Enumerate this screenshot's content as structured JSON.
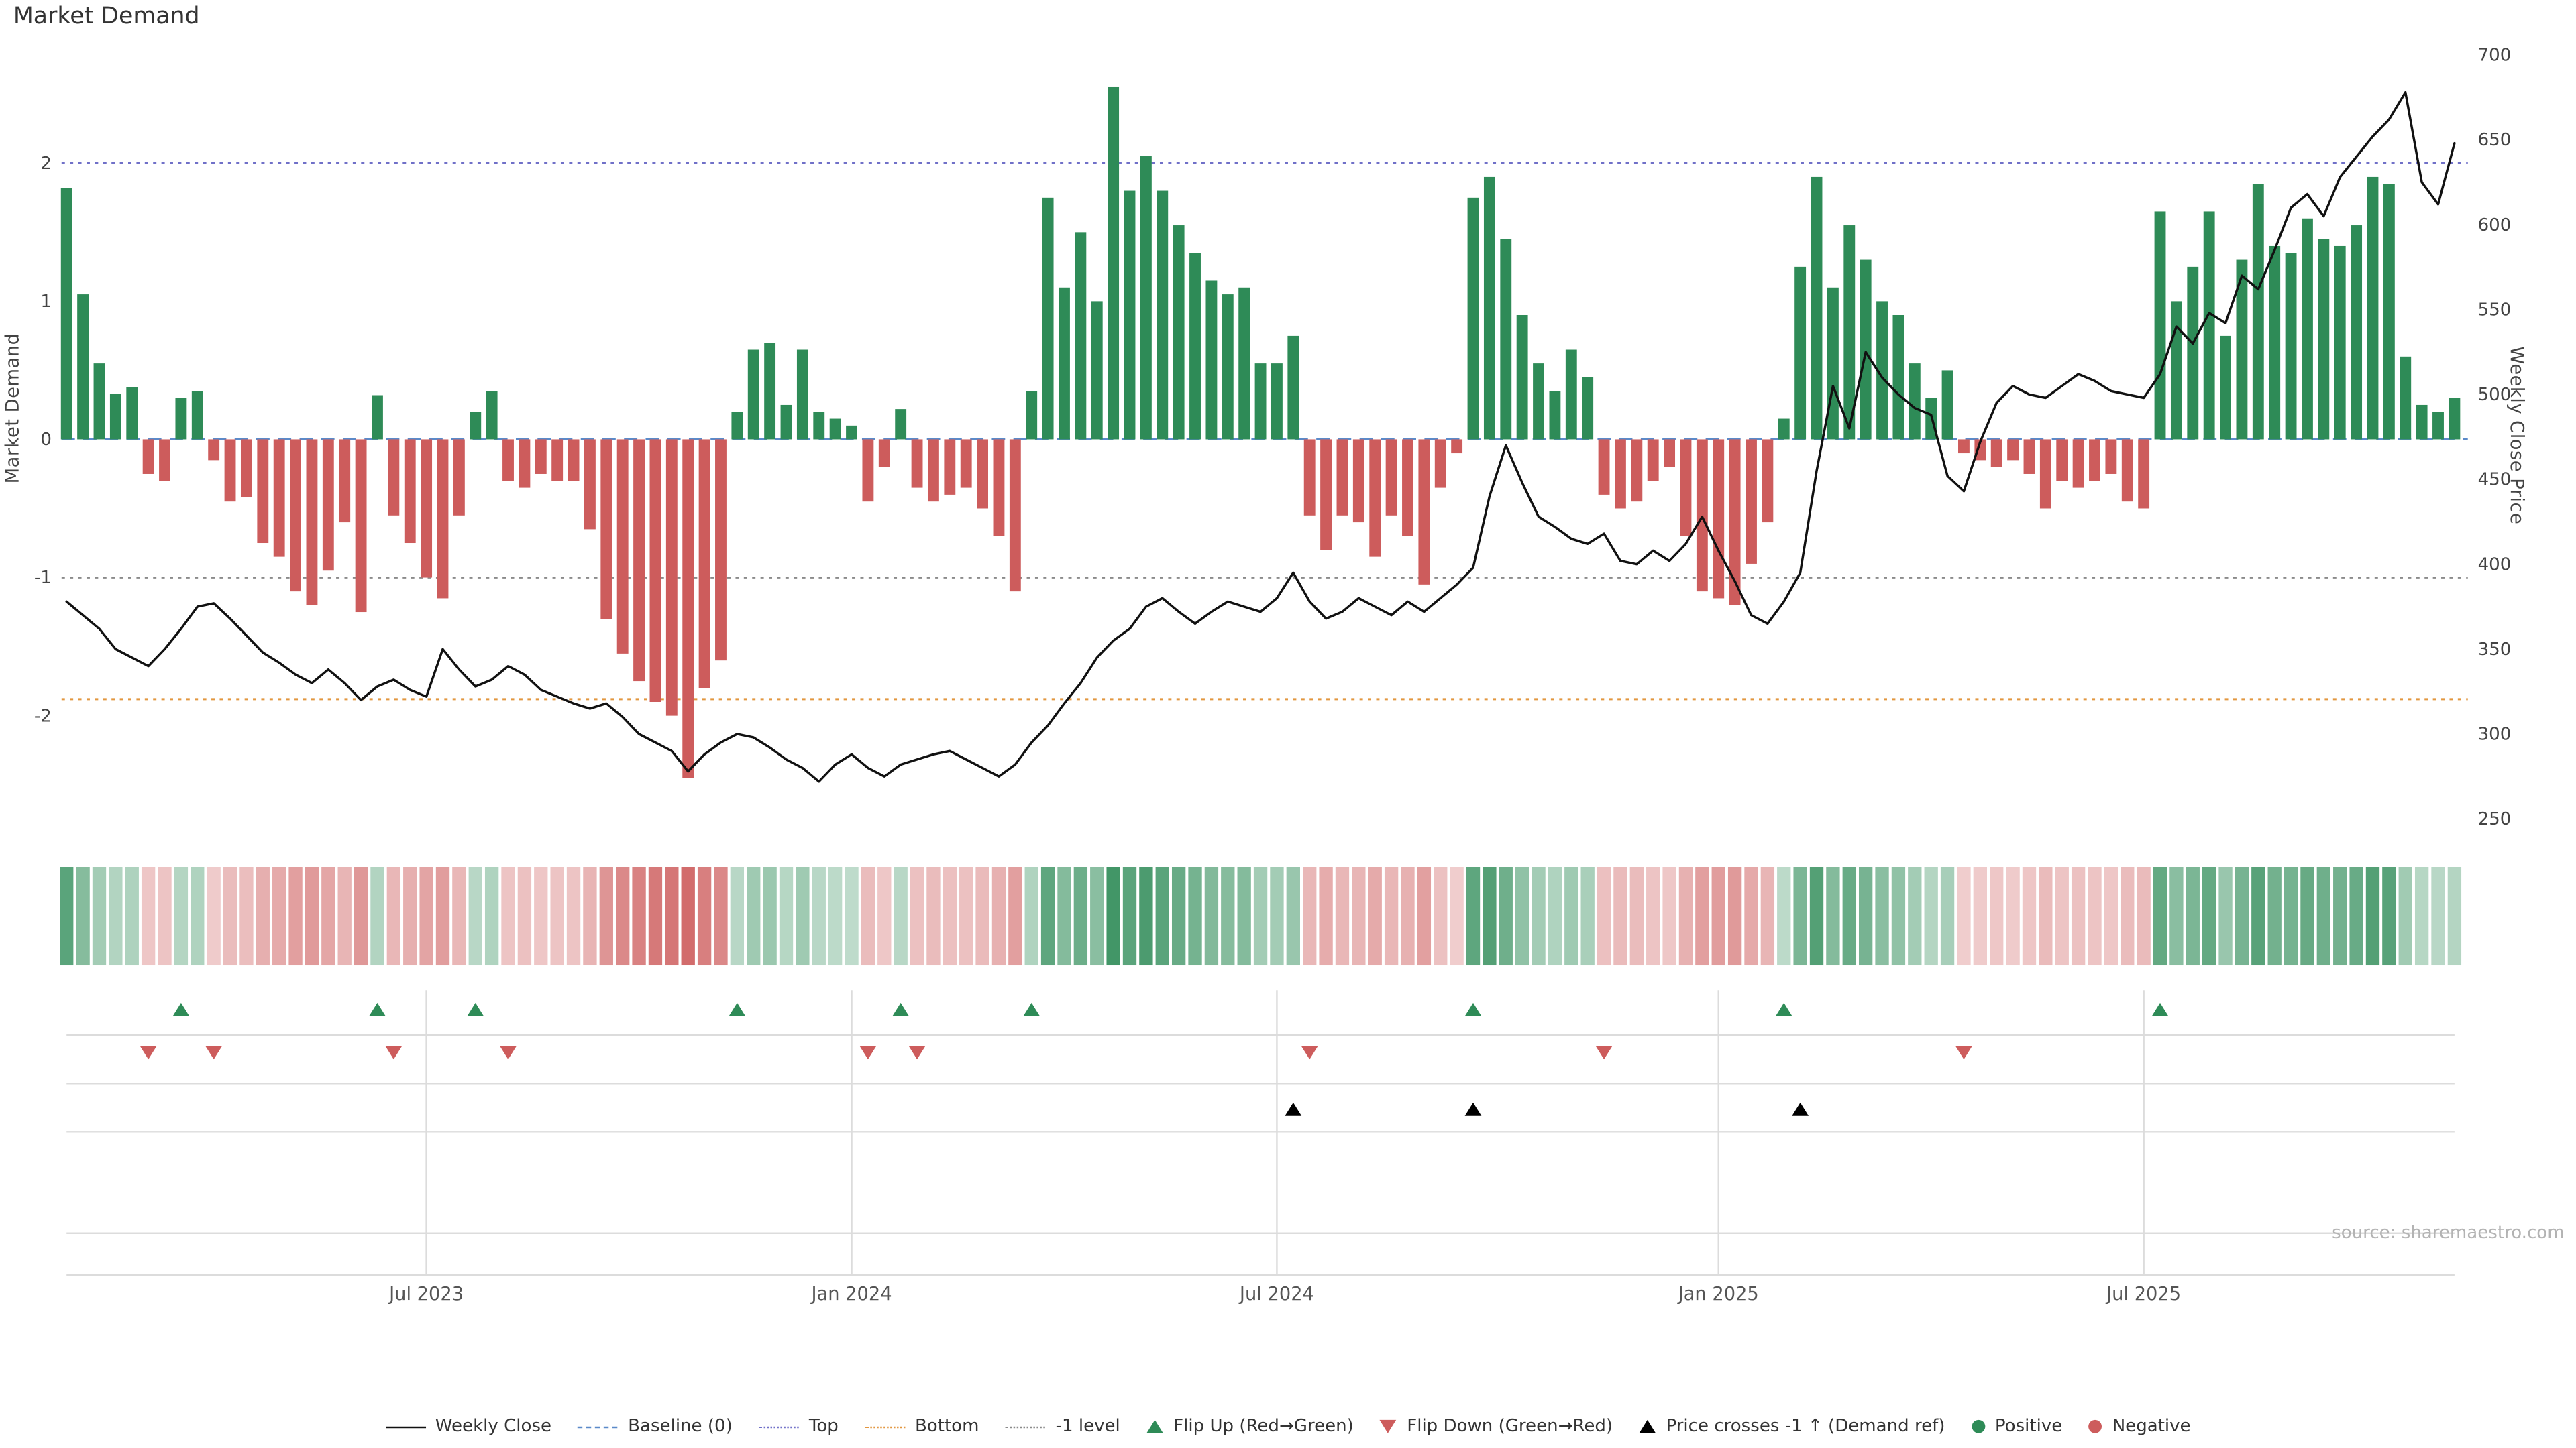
{
  "title": "Market Demand",
  "source": "source: sharemaestro.com",
  "colors": {
    "positive": "#2e8b57",
    "negative": "#cd5c5c",
    "price_line": "#111111",
    "baseline": "#5b8ac9",
    "top": "#7070c8",
    "bottom": "#e2963f",
    "minus_one": "#8a8a8a",
    "grid": "#dcdcdc",
    "tick_text": "#555555",
    "source_text": "#b3b3b3"
  },
  "chart_data": {
    "type": "bar+line combo with heatmap strip and event-marker rows",
    "x_unit": "week",
    "left_axis": {
      "label": "Market Demand",
      "range": [
        -2.75,
        2.78
      ],
      "ticks": [
        -2,
        -1,
        0,
        1,
        2
      ]
    },
    "right_axis": {
      "label": "Weekly Close Price",
      "range": [
        250,
        700
      ],
      "ticks": [
        250,
        300,
        350,
        400,
        450,
        500,
        550,
        600,
        650,
        700
      ]
    },
    "x_axis": {
      "tick_labels": [
        "Jul 2023",
        "Jan 2024",
        "Jul 2024",
        "Jan 2025",
        "Jul 2025"
      ],
      "tick_weeks": [
        22,
        48,
        74,
        101,
        127
      ]
    },
    "reference_levels": {
      "baseline": 0,
      "top": 2.0,
      "bottom": -1.88,
      "minus_one": -1.0
    },
    "series": [
      {
        "name": "Market Demand",
        "type": "bar",
        "axis": "left",
        "values": [
          1.82,
          1.05,
          0.55,
          0.33,
          0.38,
          -0.25,
          -0.3,
          0.3,
          0.35,
          -0.15,
          -0.45,
          -0.42,
          -0.75,
          -0.85,
          -1.1,
          -1.2,
          -0.95,
          -0.6,
          -1.25,
          0.32,
          -0.55,
          -0.75,
          -1.0,
          -1.15,
          -0.55,
          0.2,
          0.35,
          -0.3,
          -0.35,
          -0.25,
          -0.3,
          -0.3,
          -0.65,
          -1.3,
          -1.55,
          -1.75,
          -1.9,
          -2.0,
          -2.45,
          -1.8,
          -1.6,
          0.2,
          0.65,
          0.7,
          0.25,
          0.65,
          0.2,
          0.15,
          0.1,
          -0.45,
          -0.2,
          0.22,
          -0.35,
          -0.45,
          -0.4,
          -0.35,
          -0.5,
          -0.7,
          -1.1,
          0.35,
          1.75,
          1.1,
          1.5,
          1.0,
          2.55,
          1.8,
          2.05,
          1.8,
          1.55,
          1.35,
          1.15,
          1.05,
          1.1,
          0.55,
          0.55,
          0.75,
          -0.55,
          -0.8,
          -0.55,
          -0.6,
          -0.85,
          -0.55,
          -0.7,
          -1.05,
          -0.35,
          -0.1,
          1.75,
          1.9,
          1.45,
          0.9,
          0.55,
          0.35,
          0.65,
          0.45,
          -0.4,
          -0.5,
          -0.45,
          -0.3,
          -0.2,
          -0.7,
          -1.1,
          -1.15,
          -1.2,
          -0.9,
          -0.6,
          0.15,
          1.25,
          1.9,
          1.1,
          1.55,
          1.3,
          1.0,
          0.9,
          0.55,
          0.3,
          0.5,
          -0.1,
          -0.15,
          -0.2,
          -0.15,
          -0.25,
          -0.5,
          -0.3,
          -0.35,
          -0.3,
          -0.25,
          -0.45,
          -0.5,
          1.65,
          1.0,
          1.25,
          1.65,
          0.75,
          1.3,
          1.85,
          1.4,
          1.35,
          1.6,
          1.45,
          1.4,
          1.55,
          1.9,
          1.85,
          0.6,
          0.25,
          0.2,
          0.3
        ]
      },
      {
        "name": "Weekly Close",
        "type": "line",
        "axis": "right",
        "values": [
          378,
          370,
          362,
          350,
          345,
          340,
          350,
          362,
          375,
          377,
          368,
          358,
          348,
          342,
          335,
          330,
          338,
          330,
          320,
          328,
          332,
          326,
          322,
          350,
          338,
          328,
          332,
          340,
          335,
          326,
          322,
          318,
          315,
          318,
          310,
          300,
          295,
          290,
          278,
          288,
          295,
          300,
          298,
          292,
          285,
          280,
          272,
          282,
          288,
          280,
          275,
          282,
          285,
          288,
          290,
          285,
          280,
          275,
          282,
          295,
          305,
          318,
          330,
          345,
          355,
          362,
          375,
          380,
          372,
          365,
          372,
          378,
          375,
          372,
          380,
          395,
          378,
          368,
          372,
          380,
          375,
          370,
          378,
          372,
          380,
          388,
          398,
          440,
          470,
          448,
          428,
          422,
          415,
          412,
          418,
          402,
          400,
          408,
          402,
          412,
          428,
          408,
          390,
          370,
          365,
          378,
          395,
          455,
          505,
          480,
          525,
          510,
          500,
          492,
          488,
          452,
          443,
          472,
          495,
          505,
          500,
          498,
          505,
          512,
          508,
          502,
          500,
          498,
          512,
          540,
          530,
          548,
          542,
          570,
          562,
          585,
          610,
          618,
          605,
          628,
          640,
          652,
          662,
          678,
          625,
          612,
          648
        ]
      }
    ],
    "markers": {
      "flip_up_weeks": [
        7,
        19,
        25,
        41,
        51,
        59,
        86,
        105,
        128
      ],
      "flip_down_weeks": [
        5,
        9,
        20,
        27,
        49,
        52,
        76,
        94,
        116
      ],
      "price_cross_weeks": [
        75,
        86,
        106
      ]
    },
    "heatmap": "one cell per week, green for positive demand, red for negative, intensity by magnitude"
  },
  "legend": {
    "items": [
      {
        "name": "weekly-close",
        "glyph": "solid-line",
        "label": "Weekly Close"
      },
      {
        "name": "baseline",
        "glyph": "dashed-line",
        "label": "Baseline (0)"
      },
      {
        "name": "top",
        "glyph": "dotted-line",
        "label": "Top"
      },
      {
        "name": "bottom",
        "glyph": "dotted-line",
        "label": "Bottom"
      },
      {
        "name": "minus-one-level",
        "glyph": "dotted-line",
        "label": "-1 level"
      },
      {
        "name": "flip-up",
        "glyph": "triangle-up-green",
        "label": "Flip Up (Red→Green)"
      },
      {
        "name": "flip-down",
        "glyph": "triangle-down-red",
        "label": "Flip Down (Green→Red)"
      },
      {
        "name": "price-cross",
        "glyph": "triangle-up-black",
        "label": "Price crosses -1 ↑ (Demand ref)"
      },
      {
        "name": "positive",
        "glyph": "dot-green",
        "label": "Positive"
      },
      {
        "name": "negative",
        "glyph": "dot-red",
        "label": "Negative"
      }
    ]
  }
}
